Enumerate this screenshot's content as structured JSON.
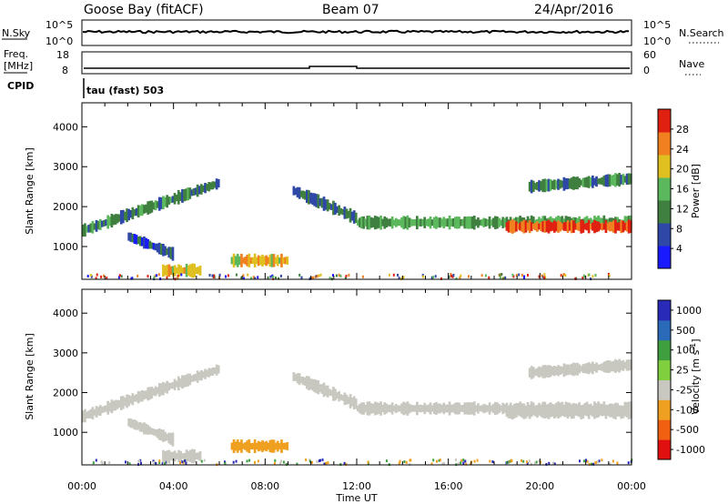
{
  "header": {
    "station": "Goose Bay (fitACF)",
    "beam": "Beam 07",
    "date": "24/Apr/2016"
  },
  "noise_panel": {
    "left_label": "N.Sky",
    "right_label": "N.Search",
    "top_tick": "10^5",
    "bottom_tick": "10^0",
    "right_top_tick": "10^5",
    "right_bottom_tick": "10^0"
  },
  "freq_panel": {
    "left_label_line1": "Freq.",
    "left_label_line2": "[MHz]",
    "left_top_tick": "18",
    "left_bottom_tick": "8",
    "right_label": "Nave",
    "right_top_tick": "60",
    "right_bottom_tick": "0"
  },
  "cpid": {
    "label": "CPID",
    "value": "tau (fast) 503"
  },
  "chart_data": [
    {
      "type": "heatmap",
      "panel": "power",
      "ylabel": "Slant Range [km]",
      "xlabel": "Time UT",
      "x_range_hours": [
        0,
        24
      ],
      "ylim": [
        180,
        4600
      ],
      "y_ticks": [
        "1000",
        "2000",
        "3000",
        "4000"
      ],
      "x_ticks": [
        "00:00",
        "04:00",
        "08:00",
        "12:00",
        "16:00",
        "20:00",
        "00:00"
      ],
      "colorbar": {
        "label": "Power [dB]",
        "ticks": [
          "4",
          "8",
          "12",
          "16",
          "20",
          "24",
          "28"
        ],
        "colors": [
          "#1a1aff",
          "#2f48a8",
          "#3f7f3f",
          "#5cb85c",
          "#e0c020",
          "#f08020",
          "#e02010"
        ]
      },
      "echo_bands": [
        {
          "name": "band-a",
          "t0": 0.0,
          "t1": 6.0,
          "r0": 1400,
          "r1": 2600,
          "power": 10
        },
        {
          "name": "band-b",
          "t0": 9.2,
          "t1": 12.0,
          "r0": 2400,
          "r1": 1700,
          "power": 8
        },
        {
          "name": "band-c",
          "t0": 12.0,
          "t1": 24.0,
          "r0": 1600,
          "r1": 1600,
          "power": 12
        },
        {
          "name": "band-d",
          "t0": 18.5,
          "t1": 24.0,
          "r0": 1500,
          "r1": 1500,
          "power": 24
        },
        {
          "name": "band-e",
          "t0": 2.0,
          "t1": 4.0,
          "r0": 1250,
          "r1": 800,
          "power": 6
        },
        {
          "name": "band-f",
          "t0": 6.5,
          "t1": 9.0,
          "r0": 650,
          "r1": 650,
          "power": 18
        },
        {
          "name": "band-g",
          "t0": 3.5,
          "t1": 5.2,
          "r0": 400,
          "r1": 400,
          "power": 18
        },
        {
          "name": "band-h",
          "t0": 19.5,
          "t1": 24.0,
          "r0": 2500,
          "r1": 2700,
          "power": 10
        }
      ]
    },
    {
      "type": "heatmap",
      "panel": "velocity",
      "ylabel": "Slant Range [km]",
      "xlabel": "Time UT",
      "x_range_hours": [
        0,
        24
      ],
      "ylim": [
        180,
        4600
      ],
      "y_ticks": [
        "1000",
        "2000",
        "3000",
        "4000"
      ],
      "x_ticks": [
        "00:00",
        "04:00",
        "08:00",
        "12:00",
        "16:00",
        "20:00",
        "00:00"
      ],
      "colorbar": {
        "label": "Velocity [m s^-1]",
        "ticks": [
          "1000",
          "500",
          "100",
          "25",
          "-25",
          "-100",
          "-500",
          "-1000"
        ],
        "colors": [
          "#2a2ab8",
          "#2a6ab8",
          "#3f9f3f",
          "#7fcf3f",
          "#c8c8c0",
          "#f0a020",
          "#f06010",
          "#e01010"
        ]
      }
    }
  ]
}
